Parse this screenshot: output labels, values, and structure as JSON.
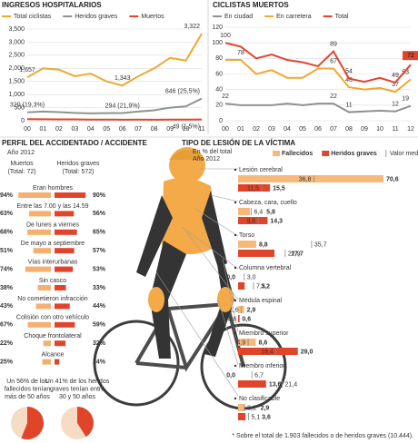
{
  "chart_data": [
    {
      "type": "line",
      "title": "INGRESOS HOSPITALARIOS",
      "categories": [
        "00",
        "01",
        "02",
        "03",
        "04",
        "05",
        "06",
        "07",
        "08",
        "09",
        "10",
        "11"
      ],
      "series": [
        {
          "name": "Total ciclistas",
          "color": "#f0a830",
          "values": [
            1657,
            2000,
            1950,
            1700,
            1800,
            1500,
            1343,
            1700,
            2000,
            2400,
            2300,
            3322
          ],
          "value_labels": [
            "1,657",
            null,
            null,
            null,
            null,
            null,
            "1,343",
            null,
            null,
            null,
            null,
            "3,322"
          ]
        },
        {
          "name": "Heridos graves",
          "color": "#8c9490",
          "values": [
            320,
            350,
            330,
            300,
            280,
            290,
            294,
            350,
            400,
            500,
            550,
            846
          ],
          "value_labels": [
            "320 (19,3%)",
            null,
            null,
            null,
            null,
            null,
            "294 (21,9%)",
            null,
            null,
            null,
            null,
            "846 (25,5%)"
          ]
        },
        {
          "name": "Muertos",
          "color": "#e0452b",
          "values": [
            60,
            55,
            50,
            50,
            45,
            45,
            40,
            45,
            40,
            45,
            45,
            49
          ],
          "value_labels": [
            null,
            null,
            null,
            null,
            null,
            null,
            null,
            null,
            null,
            null,
            null,
            "49 (1,5%)"
          ]
        }
      ],
      "ylim": [
        0,
        3500
      ],
      "yticks": [
        0,
        500,
        {
          "value": 1000,
          "label": "1,000"
        },
        {
          "value": 1500,
          "label": "1,500"
        },
        {
          "value": 2000,
          "label": "2,000"
        },
        {
          "value": 2500,
          "label": "2,500"
        },
        {
          "value": 3000,
          "label": "3,000"
        },
        {
          "value": 3500,
          "label": "3,500"
        }
      ],
      "grid": true
    },
    {
      "type": "line",
      "title": "CICLISTAS MUERTOS",
      "categories": [
        "00",
        "01",
        "02",
        "03",
        "04",
        "05",
        "06",
        "07",
        "08",
        "09",
        "10",
        "11",
        "12"
      ],
      "series": [
        {
          "name": "En ciudad",
          "color": "#8c9490",
          "values": [
            22,
            20,
            20,
            20,
            22,
            20,
            22,
            22,
            11,
            12,
            13,
            12,
            19
          ],
          "value_labels": [
            "22",
            null,
            null,
            null,
            null,
            null,
            null,
            "22",
            "11",
            null,
            null,
            "12",
            "19"
          ]
        },
        {
          "name": "En carretera",
          "color": "#f0a830",
          "values": [
            78,
            78,
            60,
            65,
            55,
            55,
            67,
            67,
            43,
            40,
            42,
            37,
            53
          ],
          "value_labels": [
            null,
            "78",
            null,
            null,
            null,
            null,
            null,
            "67",
            "43",
            null,
            null,
            "37",
            "53"
          ]
        },
        {
          "name": "Total",
          "color": "#e0452b",
          "values": [
            100,
            95,
            80,
            85,
            78,
            75,
            70,
            89,
            54,
            50,
            55,
            49,
            72
          ],
          "value_labels": [
            "100",
            null,
            null,
            null,
            null,
            null,
            null,
            "89",
            "54",
            null,
            null,
            "49",
            "72"
          ]
        }
      ],
      "ylim": [
        0,
        120
      ],
      "yticks": [
        0,
        20,
        40,
        60,
        80,
        100,
        120
      ],
      "grid": true
    },
    {
      "type": "butterfly",
      "title": "PERFIL DEL ACCIDENTADO / ACCIDENTE",
      "subtitle": "Año 2012",
      "categories": [
        "Eran hombres",
        "Entre las 7.00 y las 14.59",
        "De lunes a viernes",
        "De mayo a septiembre",
        "Vías interurbanas",
        "Sin casco",
        "No cometieron infracción",
        "Colisión con otro vehículo",
        "Choque frontolateral",
        "Alcance"
      ],
      "series": [
        {
          "name": "Muertos",
          "subtitle": "(Total: 72)",
          "color": "#f5b070",
          "values": [
            94,
            63,
            68,
            51,
            74,
            38,
            43,
            67,
            22,
            25
          ],
          "value_labels": [
            "94%",
            "63%",
            "68%",
            "51%",
            "74%",
            "38%",
            "43%",
            "67%",
            "22%",
            "25%"
          ]
        },
        {
          "name": "Heridos graves",
          "subtitle": "(Total: 572)",
          "color": "#e0452b",
          "values": [
            90,
            56,
            65,
            57,
            53,
            33,
            44,
            59,
            32,
            14
          ],
          "value_labels": [
            "90%",
            "56%",
            "65%",
            "57%",
            "53%",
            "33%",
            "44%",
            "59%",
            "32%",
            "14%"
          ]
        }
      ],
      "xlim": [
        0,
        100
      ]
    },
    {
      "type": "pie",
      "caption": [
        "Un 56% de los",
        "fallecidos tenían",
        "más de 50 años"
      ],
      "value": 56,
      "color": "#e0452b"
    },
    {
      "type": "pie",
      "caption": [
        "Un 41% de los heridos",
        "graves tenían entre",
        "30 y 50 años"
      ],
      "value": 41,
      "color": "#e0452b"
    },
    {
      "type": "hbar",
      "title": "TIPO DE LESIÓN DE LA VÍCTIMA",
      "subtitle": "En % del total",
      "note": "Año 2012",
      "average_name": "Valor medio*",
      "categories": [
        "Lesión cerebral",
        "Cabeza, cara, cuello",
        "Torso",
        "Columna vertebral",
        "Médula espinal",
        "Miembro superior",
        "Miembro inferior",
        "No clasificable"
      ],
      "series": [
        {
          "name": "Fallecidos",
          "color": "#f7b97a",
          "values": [
            70.6,
            5.8,
            8.8,
            0.0,
            2.9,
            8.6,
            0.0,
            2.9
          ],
          "value_labels": [
            "70,6",
            "5,8",
            "8,8",
            "0,0",
            "2,9",
            "8,6",
            "0,0",
            "2,9"
          ],
          "average": [
            36.8,
            6.4,
            35.7,
            3.0,
            1.6,
            4.9,
            6.7,
            3.1
          ],
          "average_labels": [
            "36,8",
            "6,4",
            "35,7",
            "3,0",
            "1,6",
            "4,9",
            "6,7",
            "3,1"
          ]
        },
        {
          "name": "Heridos graves",
          "color": "#e0452b",
          "values": [
            15.5,
            14.3,
            17.7,
            3.2,
            0.6,
            29.0,
            13.6,
            3.6
          ],
          "value_labels": [
            "15,5",
            "14,3",
            "17,7",
            "3,2",
            "0,6",
            "29,0",
            "13,6",
            "3,6"
          ],
          "average": [
            11.5,
            9.8,
            22.9,
            7.5,
            0.6,
            18.4,
            21.4,
            5.1
          ],
          "average_labels": [
            "11,5",
            "9,8",
            "22,9",
            "7,5",
            "0,6",
            "18,4",
            "21,4",
            "5,1"
          ]
        }
      ],
      "xlim": [
        0,
        75
      ],
      "footnote": "* Sobre el total de 1.903 fallecidos o de heridos graves (10.444)."
    }
  ]
}
